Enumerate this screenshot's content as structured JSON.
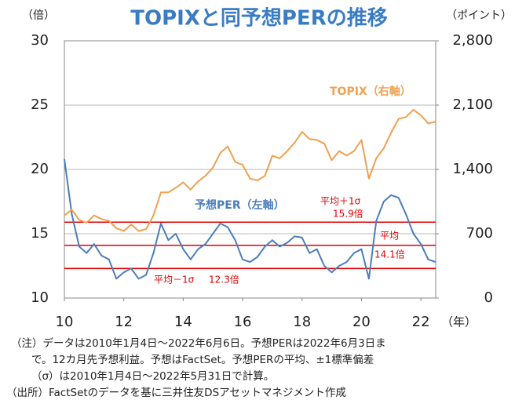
{
  "chart_data": {
    "type": "line",
    "title": "TOPIXと同予想PERの推移",
    "ylabel": "（倍）",
    "y2label": "（ポイント）",
    "xlabel": "（年）",
    "x": [
      10,
      10.25,
      10.5,
      10.75,
      11,
      11.25,
      11.5,
      11.75,
      12,
      12.25,
      12.5,
      12.75,
      13,
      13.25,
      13.5,
      13.75,
      14,
      14.25,
      14.5,
      14.75,
      15,
      15.25,
      15.5,
      15.75,
      16,
      16.25,
      16.5,
      16.75,
      17,
      17.25,
      17.5,
      17.75,
      18,
      18.25,
      18.5,
      18.75,
      19,
      19.25,
      19.5,
      19.75,
      20,
      20.25,
      20.5,
      20.75,
      21,
      21.25,
      21.5,
      21.75,
      22,
      22.25,
      22.5
    ],
    "series": [
      {
        "name": "予想PER（左軸）",
        "color": "#4a7ebb",
        "axis": "y",
        "values": [
          20.8,
          16.5,
          14.0,
          13.5,
          14.2,
          13.3,
          13.0,
          11.5,
          12.0,
          12.3,
          11.5,
          11.8,
          13.5,
          15.8,
          14.5,
          15.0,
          13.8,
          13.0,
          13.8,
          14.2,
          15.0,
          15.8,
          15.5,
          14.5,
          13.0,
          12.8,
          13.2,
          14.0,
          14.5,
          14.0,
          14.3,
          14.8,
          14.7,
          13.5,
          13.8,
          12.5,
          12.0,
          12.5,
          12.8,
          13.5,
          13.8,
          11.5,
          16.0,
          17.5,
          18.0,
          17.8,
          16.5,
          15.0,
          14.2,
          13.0,
          12.8
        ]
      },
      {
        "name": "TOPIX（右軸）",
        "color": "#f0a050",
        "axis": "y2",
        "values": [
          900,
          960,
          850,
          820,
          900,
          860,
          840,
          760,
          730,
          800,
          730,
          750,
          900,
          1150,
          1150,
          1200,
          1260,
          1180,
          1270,
          1330,
          1420,
          1580,
          1650,
          1480,
          1450,
          1300,
          1280,
          1330,
          1550,
          1520,
          1600,
          1690,
          1810,
          1730,
          1720,
          1680,
          1500,
          1600,
          1550,
          1600,
          1720,
          1300,
          1520,
          1630,
          1800,
          1950,
          1970,
          2050,
          1990,
          1900,
          1920
        ]
      }
    ],
    "xlim": [
      10,
      22.5
    ],
    "xticks": [
      10,
      12,
      14,
      16,
      18,
      20,
      22
    ],
    "ylim": [
      10,
      30
    ],
    "yticks": [
      10,
      15,
      20,
      25,
      30
    ],
    "y2lim": [
      0,
      2800
    ],
    "y2ticks": [
      0,
      700,
      {
        "value": 1400,
        "label": "1,400"
      },
      {
        "value": 2100,
        "label": "2,100"
      },
      {
        "value": 2800,
        "label": "2,800"
      }
    ],
    "grid": true,
    "reference_lines": [
      {
        "value": 15.9,
        "label": "平均＋1σ",
        "value_label": "15.9倍"
      },
      {
        "value": 14.1,
        "label": "平均",
        "value_label": "14.1倍"
      },
      {
        "value": 12.3,
        "label": "平均－1σ",
        "value_label": "12.3倍"
      }
    ],
    "notes": [
      "（注）データは2010年1月4日～2022年6月6日。予想PERは2022年6月3日ま",
      "で。12カ月先予想利益。予想はFactSet。予想PERの平均、±1標準偏差",
      "（σ）は2010年1月4日～2022年5月31日で計算。",
      "（出所）FactSetのデータを基に三井住友DSアセットマネジメント作成"
    ]
  }
}
